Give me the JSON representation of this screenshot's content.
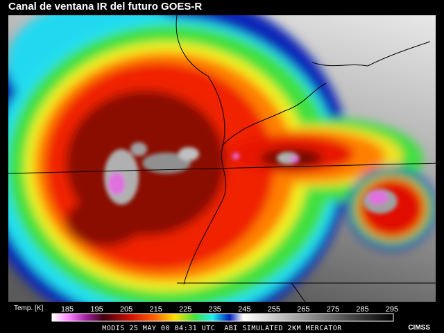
{
  "title": "Canal de ventana IR del futuro GOES-R",
  "colorbar": {
    "label": "Temp. [K]",
    "ticks": [
      185,
      195,
      205,
      215,
      225,
      235,
      245,
      255,
      265,
      275,
      285,
      295
    ]
  },
  "footer": "MODIS 25 MAY 00 04:31 UTC  ABI SIMULATED 2KM MERCATOR",
  "credit": "CIMSS"
}
